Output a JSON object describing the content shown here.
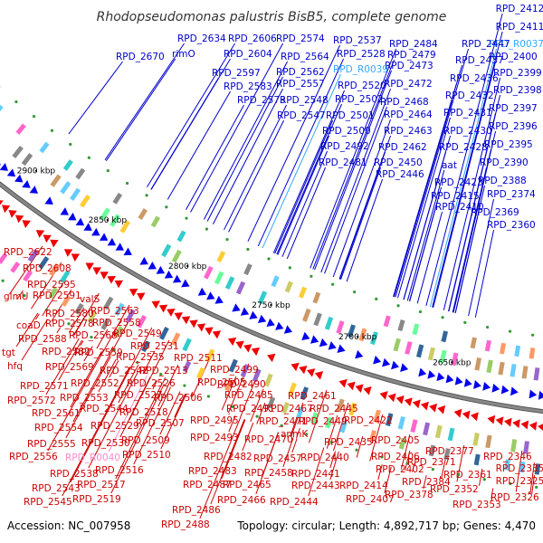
{
  "title": "Rhodopseudomonas palustris BisB5, complete genome",
  "footer": {
    "accession": "Accession: NC_007958",
    "summary": "Topology: circular; Length: 4,892,717 bp; Genes: 4,470"
  },
  "scale_ticks": [
    "3050 kbp",
    "3000 kbp",
    "2950 kbp",
    "2900 kbp",
    "2850 kbp",
    "2800 kbp",
    "2750 kbp",
    "2700 kbp",
    "2650 kbp"
  ],
  "colors": {
    "forward": "#0000ee",
    "reverse": "#ee0000",
    "backbone": "#888888",
    "label_top": "#0000cc",
    "label_bot": "#cc0000",
    "label_rna_top": "#33aaff",
    "label_rna_bot": "#ff88cc"
  },
  "top_labels": [
    "RPD_2412",
    "RPD_2411",
    "RPD_R0037",
    "RPD_2400",
    "RPD_2399",
    "RPD_2398",
    "RPD_2397",
    "RPD_2396",
    "RPD_2395",
    "RPD_2390",
    "RPD_2388",
    "RPD_2374",
    "RPD_2369",
    "RPD_2360",
    "RPD_2447",
    "RPD_2437",
    "RPD_2436",
    "RPD_2432",
    "RPD_2431",
    "RPD_2430",
    "RPD_2428",
    "aat",
    "RPD_2423",
    "RPD_2415",
    "RPD_2410",
    "RPD_2484",
    "RPD_2479",
    "RPD_2473",
    "RPD_2472",
    "RPD_2468",
    "RPD_2464",
    "RPD_2463",
    "RPD_2462",
    "RPD_2450",
    "RPD_2446",
    "RPD_2537",
    "RPD_2528",
    "RPD_R0039",
    "RPD_2520",
    "RPD_2502",
    "RPD_2501",
    "RPD_2500",
    "RPD_2492",
    "RPD_2481",
    "RPD_2574",
    "RPD_2564",
    "RPD_2562",
    "RPD_2557",
    "RPD_2548",
    "RPD_2547",
    "RPD_2634",
    "RPD_2606",
    "RPD_2604",
    "RPD_2597",
    "RPD_2583",
    "RPD_2573",
    "rimO",
    "RPD_2670"
  ],
  "bottom_labels": [
    "RPD_2622",
    "RPD_2608",
    "RPD_2595",
    "glmU",
    "RPD_2591",
    "valS",
    "RPD_2580",
    "RPD_2563",
    "coaD",
    "RPD_2578",
    "RPD_2558",
    "RPD_2588",
    "RPD_2568",
    "RPD_2549",
    "tgt",
    "RPD_2582",
    "RPD_2559",
    "RPD_2531",
    "hfq",
    "RPD_2569",
    "RPD_2535",
    "RPD_2511",
    "RPD_2571",
    "RPD_2552",
    "RPD_2542",
    "RPD_2513",
    "RPD_2499",
    "RPD_2572",
    "RPD_2553",
    "RPD_2527",
    "RPD_2526",
    "RPD_2506",
    "RPD_2505",
    "RPD_2490",
    "RPD_2561",
    "RPD_2544",
    "RPD_2518",
    "RPD_2485",
    "RPD_2461",
    "RPD_2554",
    "RPD_2529",
    "RPD_2507",
    "RPD_2495",
    "RPD_2491",
    "RPD_2467",
    "RPD_2445",
    "RPD_2471",
    "RPD_2449",
    "RPD_2422",
    "RPD_2555",
    "RPD_2530",
    "RPD_2509",
    "RPD_2493",
    "RPD_2470",
    "anmK",
    "RPD_2435",
    "RPD_2405",
    "RPD_2556",
    "RPD_R0040",
    "RPD_2510",
    "RPD_2482",
    "RPD_2457",
    "RPD_2440",
    "RPD_2406",
    "RPD_2377",
    "RPD_2346",
    "RPD_2538",
    "RPD_2516",
    "RPD_2483",
    "RPD_2458",
    "RPD_2441",
    "RPD_2402",
    "RPD_2371",
    "RPD_2335",
    "RPD_2543",
    "RPD_2517",
    "RPD_2487",
    "RPD_2465",
    "RPD_2443",
    "RPD_2414",
    "RPD_2384",
    "RPD_2361",
    "RPD_2325",
    "RPD_2545",
    "RPD_2519",
    "RPD_2466",
    "RPD_2444",
    "RPD_2407",
    "RPD_2378",
    "RPD_2352",
    "RPD_2326",
    "RPD_2486",
    "RPD_2353",
    "RPD_2488"
  ]
}
